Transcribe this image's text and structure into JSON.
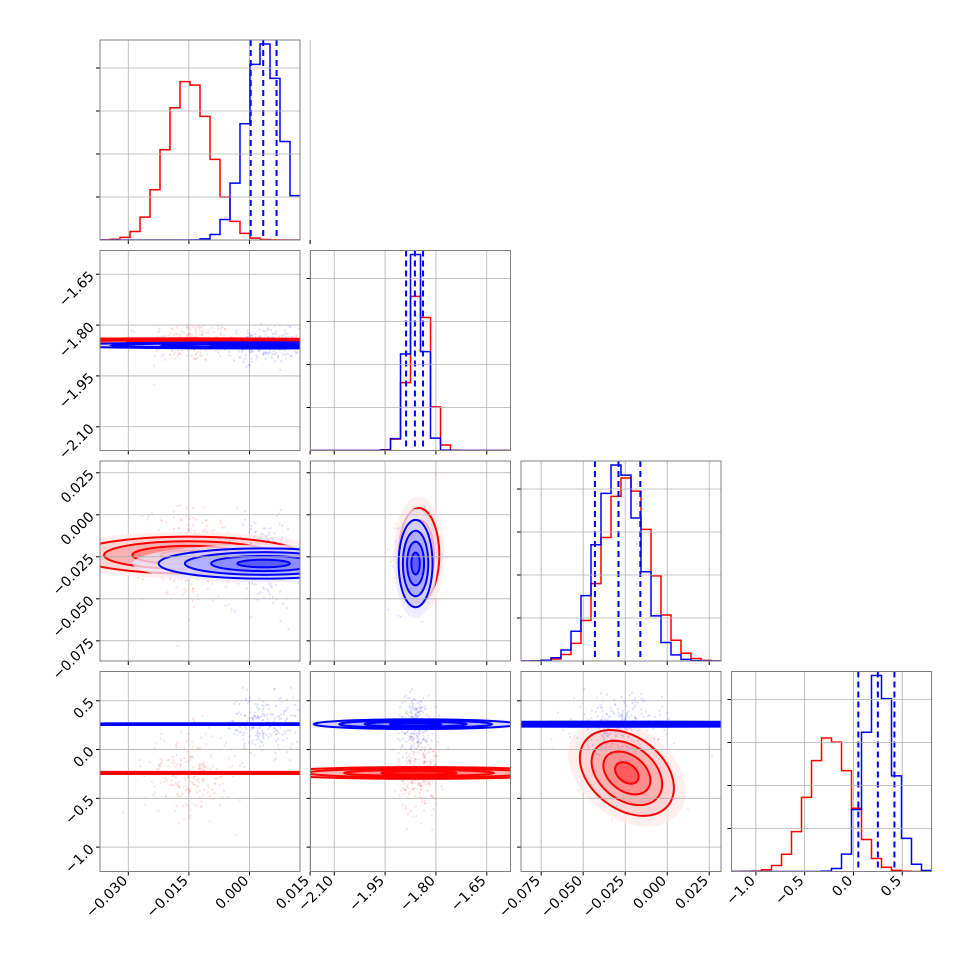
{
  "chart_data": {
    "type": "corner",
    "title": "",
    "parameters": [
      {
        "ticks": [
          -0.03,
          -0.015,
          0.0,
          0.015
        ],
        "tick_labels": [
          "−0.030",
          "−0.015",
          "0.000",
          "0.015"
        ],
        "range": [
          -0.037,
          0.0125
        ]
      },
      {
        "ticks": [
          -2.1,
          -1.95,
          -1.8,
          -1.65
        ],
        "tick_labels": [
          "−2.10",
          "−1.95",
          "−1.80",
          "−1.65"
        ],
        "range": [
          -2.17,
          -1.58
        ]
      },
      {
        "ticks": [
          -0.075,
          -0.05,
          -0.025,
          0.0,
          0.025
        ],
        "tick_labels": [
          "−0.075",
          "−0.050",
          "−0.025",
          "0.000",
          "0.025"
        ],
        "range": [
          -0.087,
          0.032
        ]
      },
      {
        "ticks": [
          -1.0,
          -0.5,
          0.0,
          0.5
        ],
        "tick_labels": [
          "−1.0",
          "−0.5",
          "0.0",
          "0.5"
        ],
        "range": [
          -1.25,
          0.8
        ]
      }
    ],
    "grid": true,
    "series": [
      {
        "color": "#ff0000",
        "means": [
          -0.015,
          -1.85,
          -0.024,
          -0.24
        ],
        "sigmas": [
          0.0055,
          0.03,
          0.014,
          0.22
        ],
        "quantiles": [],
        "correlations": {
          "2-0": 0.0,
          "2-1": 0.0,
          "3-0": 0.0,
          "3-1": 0.0,
          "3-2": -0.35
        }
      },
      {
        "color": "#0000ff",
        "means": [
          0.0035,
          -1.86,
          -0.029,
          0.26
        ],
        "sigmas": [
          0.0045,
          0.025,
          0.013,
          0.15
        ],
        "quantiles": [
          [
            0.0003,
            0.0034,
            0.0067
          ],
          [
            -1.888,
            -1.862,
            -1.838
          ],
          [
            -0.043,
            -0.029,
            -0.016
          ],
          [
            0.05,
            0.25,
            0.42
          ]
        ],
        "correlations": {
          "2-0": 0.0,
          "2-1": 0.0,
          "3-0": 0.0,
          "3-1": 0.0,
          "3-2": 0.0
        }
      }
    ]
  }
}
